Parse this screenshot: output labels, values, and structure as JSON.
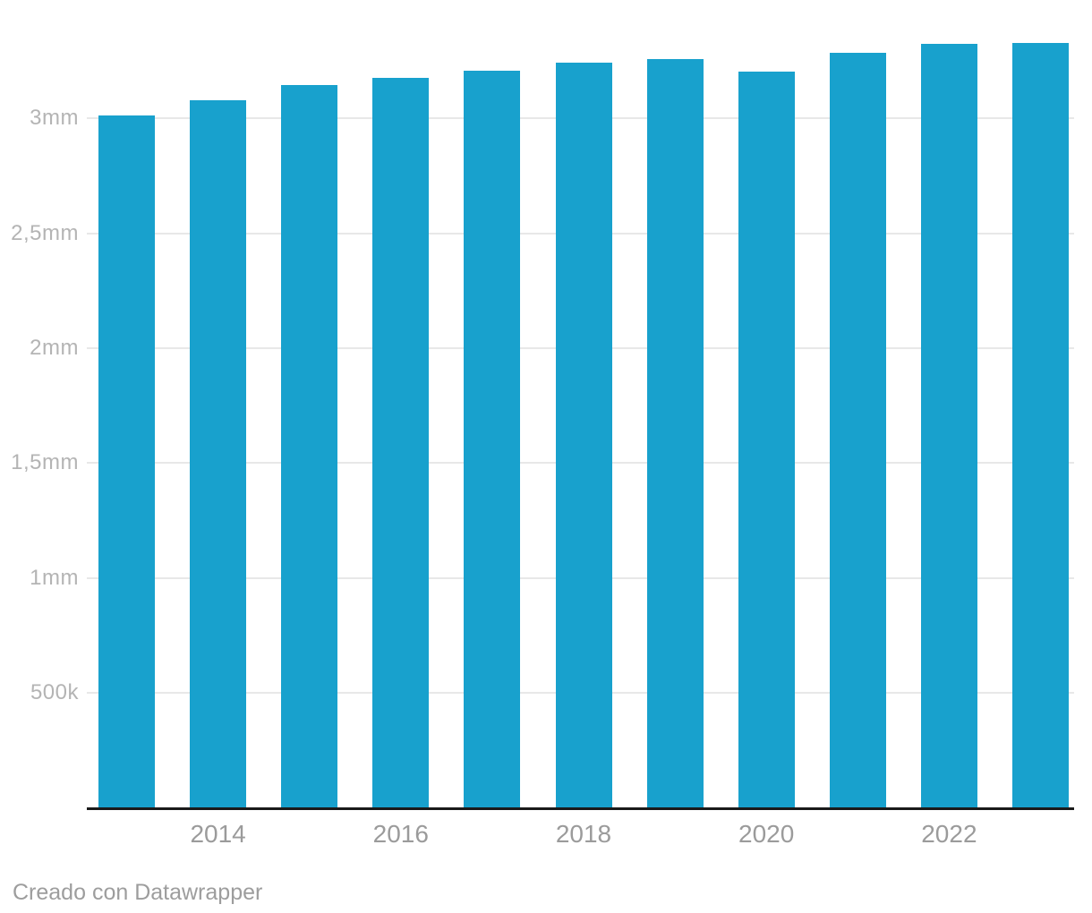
{
  "chart_data": {
    "type": "bar",
    "title": "",
    "xlabel": "",
    "ylabel": "",
    "grid": true,
    "legend_position": "none",
    "categories": [
      "2013",
      "2014",
      "2015",
      "2016",
      "2017",
      "2018",
      "2019",
      "2020",
      "2021",
      "2022",
      "2023"
    ],
    "values": [
      3010000,
      3076000,
      3143000,
      3174000,
      3206000,
      3238000,
      3256000,
      3200000,
      3282000,
      3321000,
      3324000
    ],
    "ylim": [
      0,
      3450000
    ],
    "x_axis_ticks": [
      {
        "index": 1,
        "label": "2014"
      },
      {
        "index": 3,
        "label": "2016"
      },
      {
        "index": 5,
        "label": "2018"
      },
      {
        "index": 7,
        "label": "2020"
      },
      {
        "index": 9,
        "label": "2022"
      }
    ],
    "y_axis_ticks": [
      {
        "value": 500000,
        "label": "500k"
      },
      {
        "value": 1000000,
        "label": "1mm"
      },
      {
        "value": 1500000,
        "label": "1,5mm"
      },
      {
        "value": 2000000,
        "label": "2mm"
      },
      {
        "value": 2500000,
        "label": "2,5mm"
      },
      {
        "value": 3000000,
        "label": "3mm"
      }
    ]
  },
  "colors": {
    "bar": "#18a1cd",
    "gridline": "#e8e8e8",
    "axis_line": "#1a1a1a",
    "y_tick_label": "#b4b4b4",
    "x_tick_label": "#9b9b9b",
    "footer_text": "#9d9d9d",
    "background": "#ffffff"
  },
  "footer": {
    "credit": "Creado con Datawrapper"
  }
}
